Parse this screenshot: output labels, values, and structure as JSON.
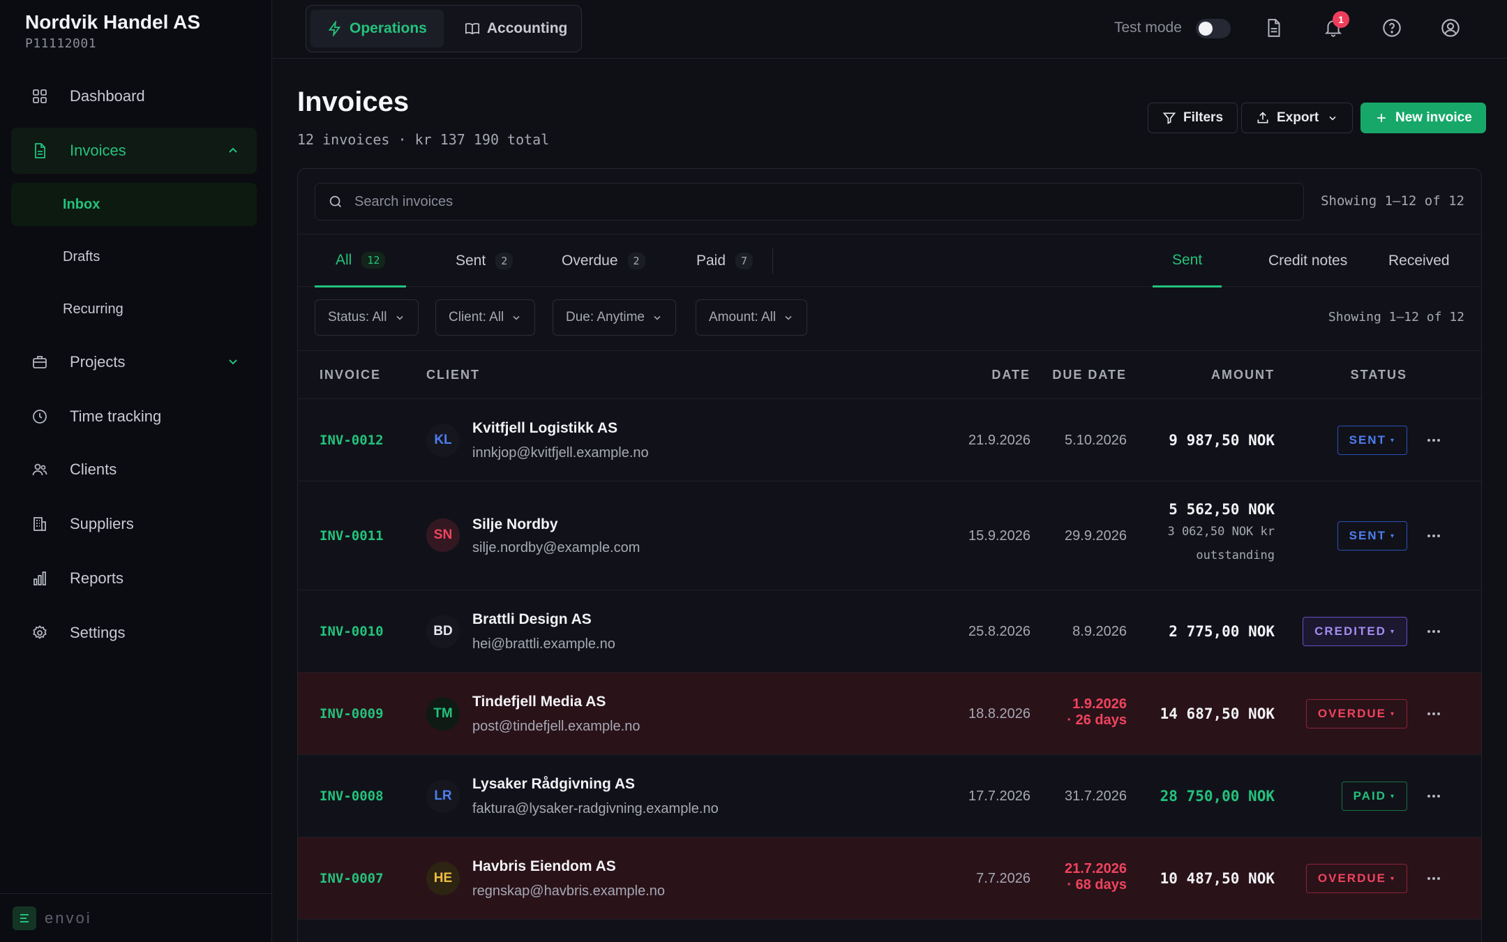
{
  "company": {
    "name": "Nordvik Handel AS",
    "id": "P11112001"
  },
  "sidebar": {
    "items": [
      {
        "label": "Dashboard"
      },
      {
        "label": "Invoices"
      },
      {
        "label": "Projects"
      },
      {
        "label": "Time tracking"
      },
      {
        "label": "Clients"
      },
      {
        "label": "Suppliers"
      },
      {
        "label": "Reports"
      },
      {
        "label": "Settings"
      }
    ],
    "subitems": [
      {
        "label": "Inbox"
      },
      {
        "label": "Drafts"
      },
      {
        "label": "Recurring"
      }
    ],
    "footer_logo": "envoi"
  },
  "topbar": {
    "tabs": [
      {
        "label": "Operations",
        "icon": "bolt-icon"
      },
      {
        "label": "Accounting",
        "icon": "book-icon"
      }
    ],
    "test_mode_label": "Test mode",
    "notification_count": "1"
  },
  "header": {
    "title": "Invoices",
    "subtitle": "12 invoices · kr 137 190 total",
    "filters_label": "Filters",
    "export_label": "Export",
    "new_invoice_label": "New invoice"
  },
  "search": {
    "placeholder": "Search invoices",
    "showing": "Showing 1–12 of 12"
  },
  "status_tabs": [
    {
      "label": "All",
      "count": "12"
    },
    {
      "label": "Sent",
      "count": "2"
    },
    {
      "label": "Overdue",
      "count": "2"
    },
    {
      "label": "Paid",
      "count": "7"
    }
  ],
  "type_tabs": [
    {
      "label": "Sent"
    },
    {
      "label": "Credit notes"
    },
    {
      "label": "Received"
    }
  ],
  "filters": [
    {
      "label": "Status: All"
    },
    {
      "label": "Client: All"
    },
    {
      "label": "Due: Anytime"
    },
    {
      "label": "Amount: All"
    }
  ],
  "filters_showing": "Showing 1–12 of 12",
  "table": {
    "headers": [
      "INVOICE",
      "CLIENT",
      "DATE",
      "DUE DATE",
      "AMOUNT",
      "STATUS"
    ],
    "rows": [
      {
        "invoice": "INV-0012",
        "initials": "KL",
        "client": "Kvitfjell Logistikk AS",
        "email": "innkjop@kvitfjell.example.no",
        "date": "21.9.2026",
        "due": "5.10.2026",
        "due_extra": "",
        "amount": "9 987,50 NOK",
        "outstanding_1": "",
        "outstanding_2": "",
        "status": "SENT"
      },
      {
        "invoice": "INV-0011",
        "initials": "SN",
        "client": "Silje Nordby",
        "email": "silje.nordby@example.com",
        "date": "15.9.2026",
        "due": "29.9.2026",
        "due_extra": "",
        "amount": "5 562,50 NOK",
        "outstanding_1": "3 062,50 NOK kr",
        "outstanding_2": "outstanding",
        "status": "SENT"
      },
      {
        "invoice": "INV-0010",
        "initials": "BD",
        "client": "Brattli Design AS",
        "email": "hei@brattli.example.no",
        "date": "25.8.2026",
        "due": "8.9.2026",
        "due_extra": "",
        "amount": "2 775,00 NOK",
        "outstanding_1": "",
        "outstanding_2": "",
        "status": "CREDITED"
      },
      {
        "invoice": "INV-0009",
        "initials": "TM",
        "client": "Tindefjell Media AS",
        "email": "post@tindefjell.example.no",
        "date": "18.8.2026",
        "due": "1.9.2026",
        "due_extra": "· 26 days",
        "amount": "14 687,50 NOK",
        "outstanding_1": "",
        "outstanding_2": "",
        "status": "OVERDUE"
      },
      {
        "invoice": "INV-0008",
        "initials": "LR",
        "client": "Lysaker Rådgivning AS",
        "email": "faktura@lysaker-radgivning.example.no",
        "date": "17.7.2026",
        "due": "31.7.2026",
        "due_extra": "",
        "amount": "28 750,00 NOK",
        "outstanding_1": "",
        "outstanding_2": "",
        "status": "PAID"
      },
      {
        "invoice": "INV-0007",
        "initials": "HE",
        "client": "Havbris Eiendom AS",
        "email": "regnskap@havbris.example.no",
        "date": "7.7.2026",
        "due": "21.7.2026",
        "due_extra": "· 68 days",
        "amount": "10 487,50 NOK",
        "outstanding_1": "",
        "outstanding_2": "",
        "status": "OVERDUE"
      }
    ]
  },
  "colors": {
    "accent": "#23c27c",
    "overdue": "#f0445e",
    "sent": "#4d7ef0",
    "credited": "#a48df0"
  }
}
